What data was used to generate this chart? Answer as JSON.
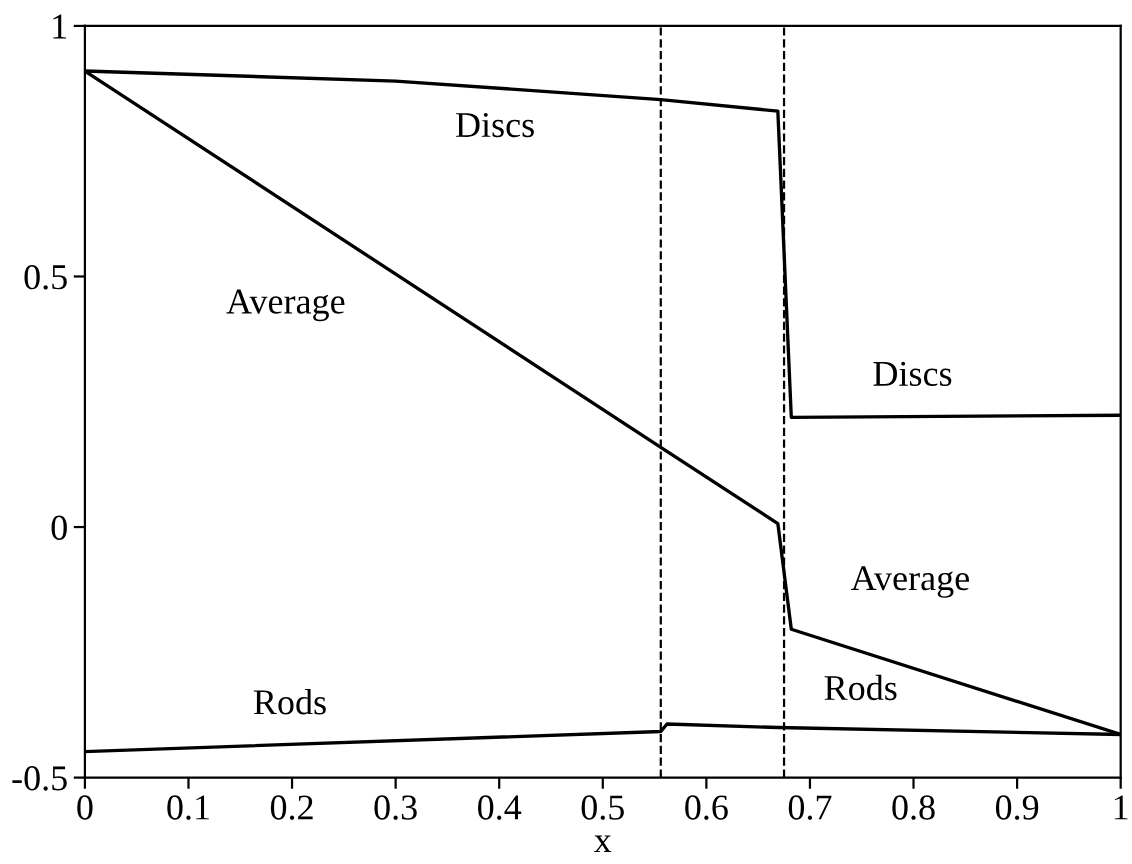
{
  "chart_data": {
    "type": "line",
    "xlabel": "x",
    "xlim": [
      0,
      1
    ],
    "ylim": [
      -0.5,
      1
    ],
    "xticks": [
      0,
      0.1,
      0.2,
      0.3,
      0.4,
      0.5,
      0.6,
      0.7,
      0.8,
      0.9,
      1
    ],
    "yticks": [
      -0.5,
      0,
      0.5,
      1
    ],
    "series": [
      {
        "color": "#000000",
        "x": [
          0,
          0.3,
          0.556,
          0.669,
          0.682,
          1.0
        ],
        "values": [
          0.91,
          0.89,
          0.853,
          0.83,
          0.219,
          0.223
        ]
      },
      {
        "color": "#000000",
        "x": [
          0,
          0.556,
          0.669,
          0.682,
          1.0
        ],
        "values": [
          0.91,
          0.159,
          0.007,
          -0.204,
          -0.414
        ]
      },
      {
        "color": "#000000",
        "x": [
          0,
          0.556,
          0.562,
          0.669,
          1.0
        ],
        "values": [
          -0.448,
          -0.408,
          -0.393,
          -0.4,
          -0.414
        ]
      }
    ],
    "ref_lines": [
      {
        "axis": "x",
        "value": 0.556,
        "line_style": "dashed",
        "color": "#000000"
      },
      {
        "axis": "x",
        "value": 0.675,
        "line_style": "dashed",
        "color": "#000000"
      }
    ],
    "annotations": [
      "Discs",
      "Average",
      "Discs",
      "Average",
      "Rods",
      "Rods"
    ],
    "grid": false,
    "legend": false
  }
}
